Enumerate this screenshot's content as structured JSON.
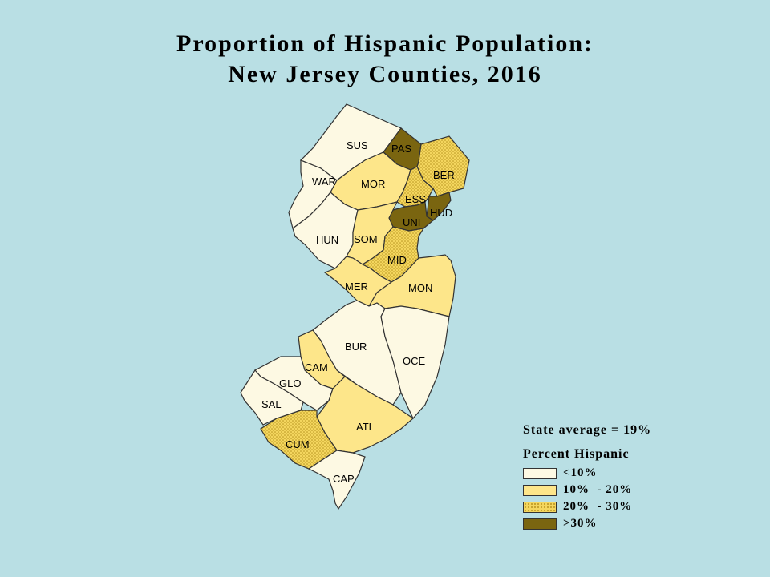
{
  "title": {
    "line1": "Proportion of Hispanic Population:",
    "line2": "New Jersey Counties, 2016"
  },
  "colors": {
    "background": "#b9dfe4",
    "lt10": "#fdf9e3",
    "10to20": "#fde68a",
    "20to30": "#e8c64a",
    "gt30": "#7a6510"
  },
  "counties": [
    {
      "code": "SUS",
      "class": "lt10"
    },
    {
      "code": "PAS",
      "class": "gt30"
    },
    {
      "code": "BER",
      "class": "20to30"
    },
    {
      "code": "WAR",
      "class": "lt10"
    },
    {
      "code": "MOR",
      "class": "10to20"
    },
    {
      "code": "ESS",
      "class": "20to30"
    },
    {
      "code": "HUD",
      "class": "gt30"
    },
    {
      "code": "UNI",
      "class": "gt30"
    },
    {
      "code": "HUN",
      "class": "lt10"
    },
    {
      "code": "SOM",
      "class": "10to20"
    },
    {
      "code": "MID",
      "class": "20to30"
    },
    {
      "code": "MER",
      "class": "10to20"
    },
    {
      "code": "MON",
      "class": "10to20"
    },
    {
      "code": "BUR",
      "class": "lt10"
    },
    {
      "code": "OCE",
      "class": "lt10"
    },
    {
      "code": "CAM",
      "class": "10to20"
    },
    {
      "code": "GLO",
      "class": "lt10"
    },
    {
      "code": "SAL",
      "class": "lt10"
    },
    {
      "code": "ATL",
      "class": "10to20"
    },
    {
      "code": "CUM",
      "class": "20to30"
    },
    {
      "code": "CAP",
      "class": "lt10"
    }
  ],
  "legend": {
    "state_average": "State average = 19%",
    "title": "Percent Hispanic",
    "items": [
      {
        "label": "<10%",
        "class": "lt10"
      },
      {
        "label": "10%  - 20%",
        "class": "10to20"
      },
      {
        "label": "20%  - 30%",
        "class": "20to30"
      },
      {
        "label": ">30%",
        "class": "gt30"
      }
    ]
  }
}
